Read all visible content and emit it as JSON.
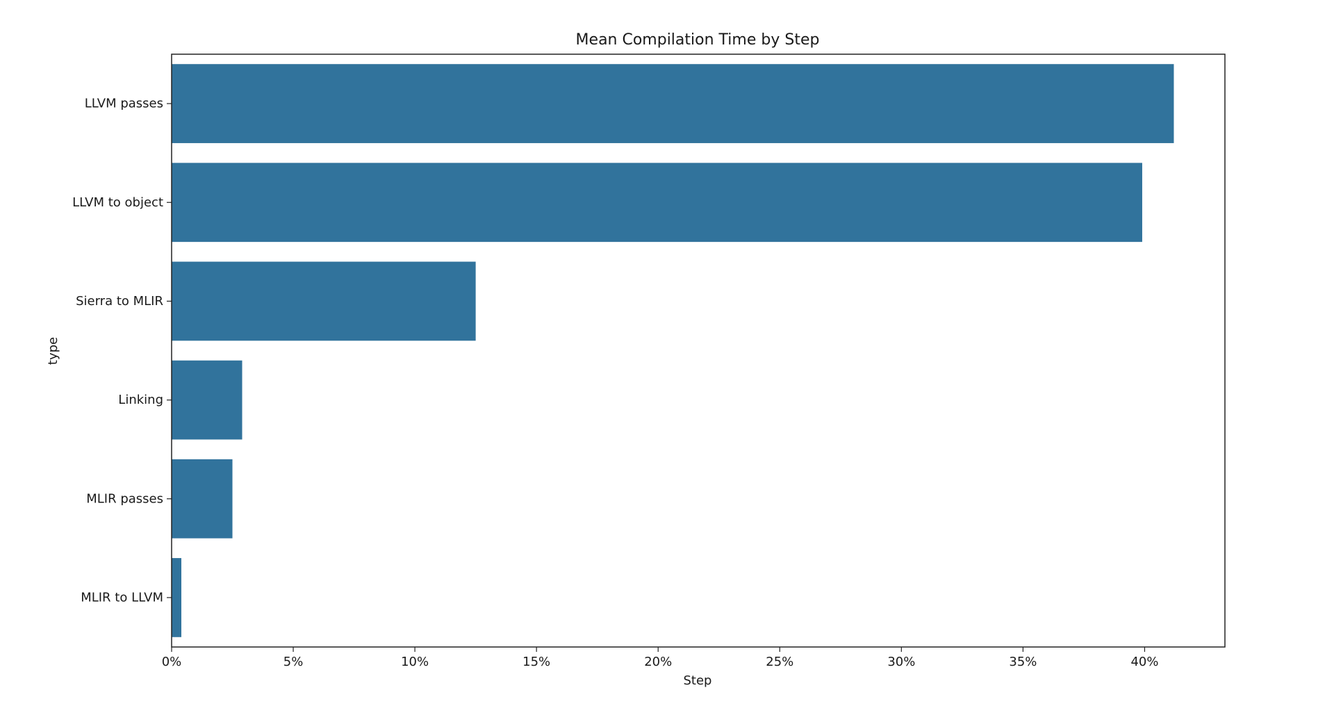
{
  "chart_data": {
    "type": "bar",
    "orientation": "horizontal",
    "title": "Mean Compilation Time by Step",
    "xlabel": "Step",
    "ylabel": "type",
    "categories": [
      "LLVM passes",
      "LLVM to object",
      "Sierra to MLIR",
      "Linking",
      "MLIR passes",
      "MLIR to LLVM"
    ],
    "values": [
      41.2,
      39.9,
      12.5,
      2.9,
      2.5,
      0.4
    ],
    "value_unit": "%",
    "xlim": [
      0,
      43.3
    ],
    "xticks": [
      0,
      5,
      10,
      15,
      20,
      25,
      30,
      35,
      40
    ],
    "xtick_labels": [
      "0%",
      "5%",
      "10%",
      "15%",
      "20%",
      "25%",
      "30%",
      "35%",
      "40%"
    ],
    "bar_color": "#31739c",
    "grid": false,
    "legend": "none"
  }
}
